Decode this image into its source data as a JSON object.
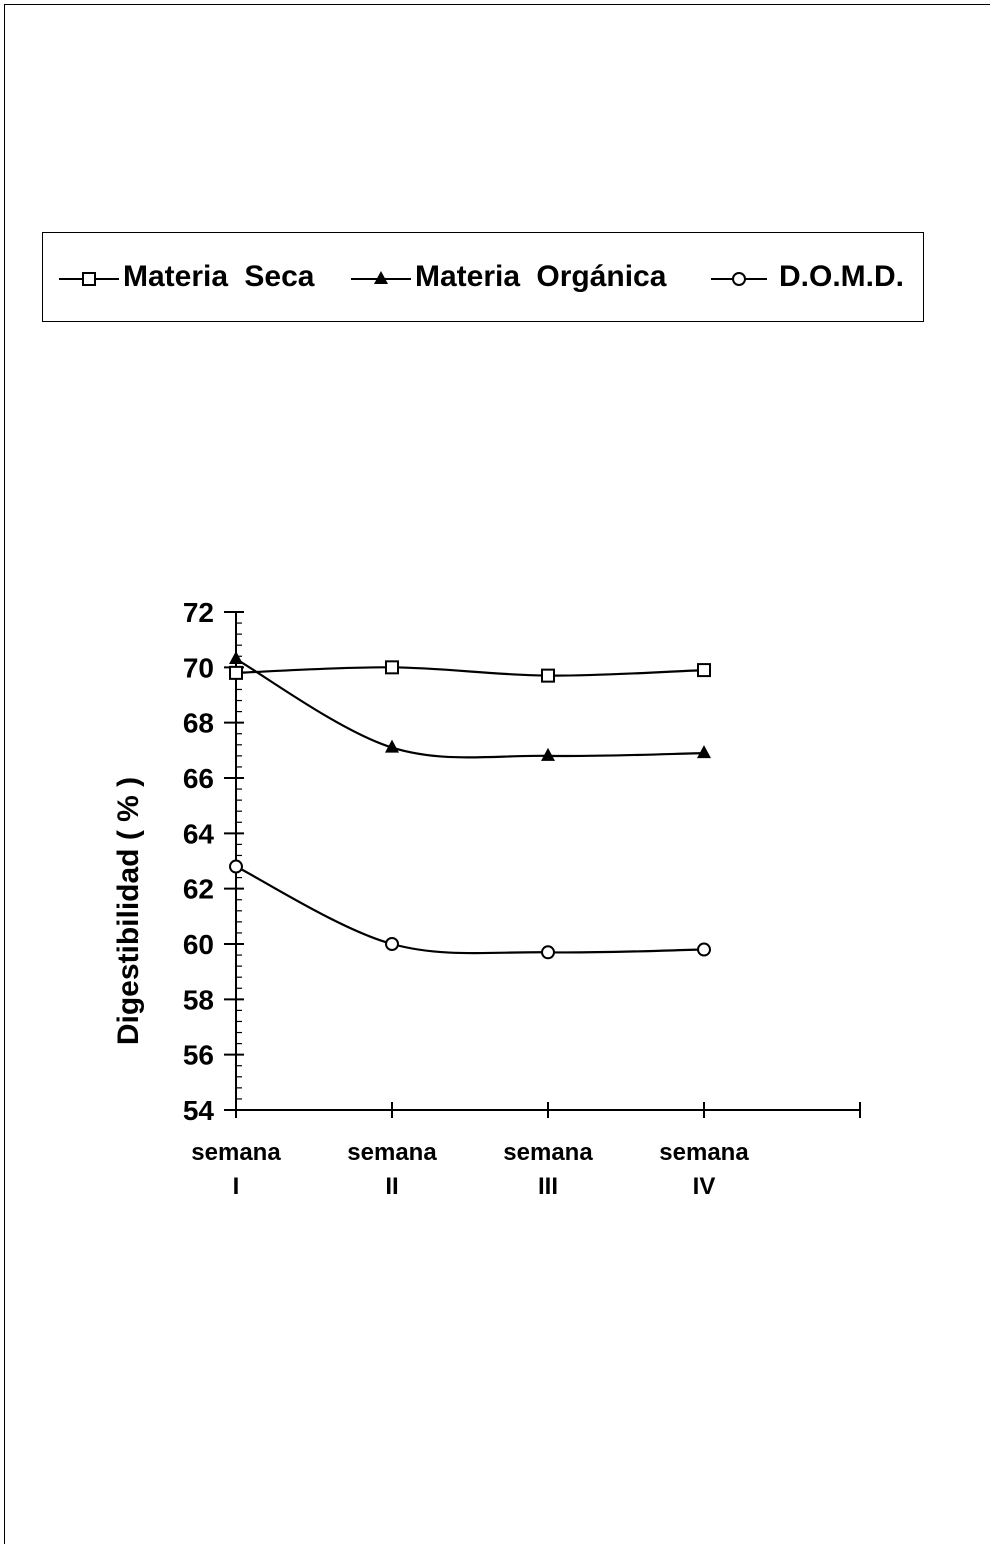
{
  "chart_data": {
    "type": "line",
    "categories": [
      [
        "semana",
        "I"
      ],
      [
        "semana",
        "II"
      ],
      [
        "semana",
        "III"
      ],
      [
        "semana",
        "IV"
      ]
    ],
    "ylabel": "Digestibilidad ( % )",
    "ylim": [
      54,
      72
    ],
    "yticks": [
      54,
      56,
      58,
      60,
      62,
      64,
      66,
      68,
      70,
      72
    ],
    "yticks_labels": [
      "54",
      "56",
      "58",
      "60",
      "62",
      "64",
      "66",
      "68",
      "70",
      "72"
    ],
    "x_slots": 5,
    "grid": false,
    "legend_position": "top",
    "series": [
      {
        "name": "Materia Seca",
        "marker": "square-open",
        "values": [
          69.8,
          70.0,
          69.7,
          69.9
        ]
      },
      {
        "name": "Materia Orgánica",
        "marker": "triangle-filled",
        "values": [
          70.3,
          67.1,
          66.8,
          66.9
        ]
      },
      {
        "name": "D.O.M.D.",
        "marker": "circle-open",
        "values": [
          62.8,
          60.0,
          59.7,
          59.8
        ]
      }
    ]
  }
}
